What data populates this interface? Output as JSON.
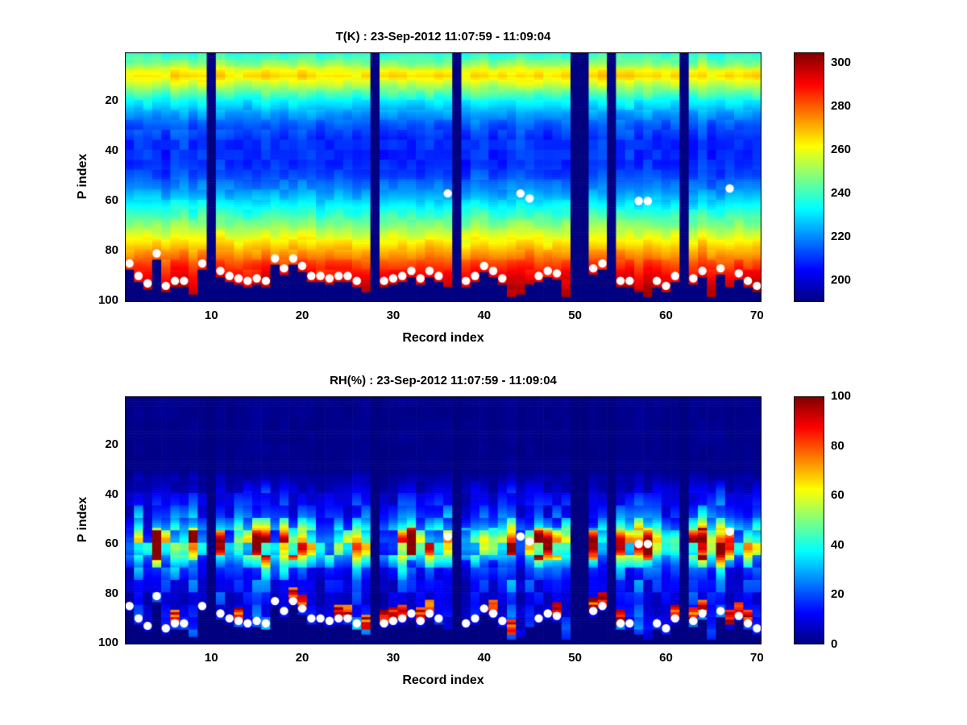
{
  "figure": {
    "background_color": "#ffffff",
    "text_color": "#000000"
  },
  "chart_data": [
    {
      "type": "heatmap",
      "variable": "T",
      "title": "T(K) : 23-Sep-2012 11:07:59 - 11:09:04",
      "xlabel": "Record index",
      "ylabel": "P index",
      "colormap": "jet",
      "x_range": [
        1,
        70
      ],
      "y_range": [
        1,
        100
      ],
      "x_ticks": [
        10,
        20,
        30,
        40,
        50,
        60,
        70
      ],
      "y_ticks": [
        20,
        40,
        60,
        80,
        100
      ],
      "colorbar": {
        "min": 190,
        "max": 305,
        "ticks": [
          200,
          220,
          240,
          260,
          280,
          300
        ]
      },
      "missing_record_columns": [
        10,
        28,
        37,
        50,
        51,
        54,
        62
      ],
      "vertical_profile": {
        "p_index": [
          1,
          5,
          8,
          10,
          13,
          16,
          20,
          25,
          30,
          35,
          45,
          50,
          55,
          60,
          65,
          70,
          75,
          80,
          85,
          90,
          95,
          100
        ],
        "value": [
          238,
          248,
          262,
          266,
          256,
          246,
          233,
          222,
          214,
          210,
          209,
          213,
          220,
          229,
          239,
          250,
          261,
          272,
          283,
          292,
          298,
          301
        ]
      },
      "marker_color": "#ffffff",
      "markers": [
        [
          1,
          85
        ],
        [
          2,
          90
        ],
        [
          3,
          93
        ],
        [
          4,
          81
        ],
        [
          5,
          94
        ],
        [
          6,
          92
        ],
        [
          7,
          92
        ],
        [
          9,
          85
        ],
        [
          11,
          88
        ],
        [
          12,
          90
        ],
        [
          13,
          91
        ],
        [
          14,
          92
        ],
        [
          15,
          91
        ],
        [
          16,
          92
        ],
        [
          17,
          83
        ],
        [
          18,
          87
        ],
        [
          19,
          83
        ],
        [
          20,
          86
        ],
        [
          21,
          90
        ],
        [
          22,
          90
        ],
        [
          23,
          91
        ],
        [
          24,
          90
        ],
        [
          25,
          90
        ],
        [
          26,
          92
        ],
        [
          29,
          92
        ],
        [
          30,
          91
        ],
        [
          31,
          90
        ],
        [
          32,
          88
        ],
        [
          33,
          91
        ],
        [
          34,
          88
        ],
        [
          35,
          90
        ],
        [
          36,
          57
        ],
        [
          38,
          92
        ],
        [
          39,
          90
        ],
        [
          40,
          86
        ],
        [
          41,
          88
        ],
        [
          42,
          91
        ],
        [
          44,
          57
        ],
        [
          45,
          59
        ],
        [
          46,
          90
        ],
        [
          47,
          88
        ],
        [
          48,
          89
        ],
        [
          52,
          87
        ],
        [
          53,
          85
        ],
        [
          55,
          92
        ],
        [
          56,
          92
        ],
        [
          57,
          60
        ],
        [
          58,
          60
        ],
        [
          59,
          92
        ],
        [
          60,
          94
        ],
        [
          61,
          90
        ],
        [
          63,
          91
        ],
        [
          64,
          88
        ],
        [
          66,
          87
        ],
        [
          67,
          55
        ],
        [
          68,
          89
        ],
        [
          69,
          92
        ],
        [
          70,
          94
        ]
      ]
    },
    {
      "type": "heatmap",
      "variable": "RH",
      "title": "RH(%) : 23-Sep-2012 11:07:59 - 11:09:04",
      "xlabel": "Record index",
      "ylabel": "P index",
      "colormap": "jet",
      "x_range": [
        1,
        70
      ],
      "y_range": [
        1,
        100
      ],
      "x_ticks": [
        10,
        20,
        30,
        40,
        50,
        60,
        70
      ],
      "y_ticks": [
        20,
        40,
        60,
        80,
        100
      ],
      "colorbar": {
        "min": 0,
        "max": 100,
        "ticks": [
          0,
          20,
          40,
          60,
          80,
          100
        ]
      },
      "missing_record_columns": [
        10,
        28,
        37,
        50,
        51,
        54,
        62
      ],
      "vertical_profile": {
        "p_index": [
          1,
          30,
          35,
          40,
          45,
          50,
          54,
          58,
          62,
          66,
          70,
          75,
          80,
          85,
          90,
          95,
          100
        ],
        "value": [
          1,
          1,
          4,
          8,
          12,
          18,
          28,
          42,
          44,
          30,
          18,
          12,
          10,
          8,
          10,
          14,
          10
        ]
      },
      "marker_color": "#ffffff",
      "markers": [
        [
          1,
          85
        ],
        [
          2,
          90
        ],
        [
          3,
          93
        ],
        [
          4,
          81
        ],
        [
          5,
          94
        ],
        [
          6,
          92
        ],
        [
          7,
          92
        ],
        [
          9,
          85
        ],
        [
          11,
          88
        ],
        [
          12,
          90
        ],
        [
          13,
          91
        ],
        [
          14,
          92
        ],
        [
          15,
          91
        ],
        [
          16,
          92
        ],
        [
          17,
          83
        ],
        [
          18,
          87
        ],
        [
          19,
          83
        ],
        [
          20,
          86
        ],
        [
          21,
          90
        ],
        [
          22,
          90
        ],
        [
          23,
          91
        ],
        [
          24,
          90
        ],
        [
          25,
          90
        ],
        [
          26,
          92
        ],
        [
          29,
          92
        ],
        [
          30,
          91
        ],
        [
          31,
          90
        ],
        [
          32,
          88
        ],
        [
          33,
          91
        ],
        [
          34,
          88
        ],
        [
          35,
          90
        ],
        [
          36,
          57
        ],
        [
          38,
          92
        ],
        [
          39,
          90
        ],
        [
          40,
          86
        ],
        [
          41,
          88
        ],
        [
          42,
          91
        ],
        [
          44,
          57
        ],
        [
          45,
          59
        ],
        [
          46,
          90
        ],
        [
          47,
          88
        ],
        [
          48,
          89
        ],
        [
          52,
          87
        ],
        [
          53,
          85
        ],
        [
          55,
          92
        ],
        [
          56,
          92
        ],
        [
          57,
          60
        ],
        [
          58,
          60
        ],
        [
          59,
          92
        ],
        [
          60,
          94
        ],
        [
          61,
          90
        ],
        [
          63,
          91
        ],
        [
          64,
          88
        ],
        [
          66,
          87
        ],
        [
          67,
          55
        ],
        [
          68,
          89
        ],
        [
          69,
          92
        ],
        [
          70,
          94
        ]
      ]
    }
  ]
}
